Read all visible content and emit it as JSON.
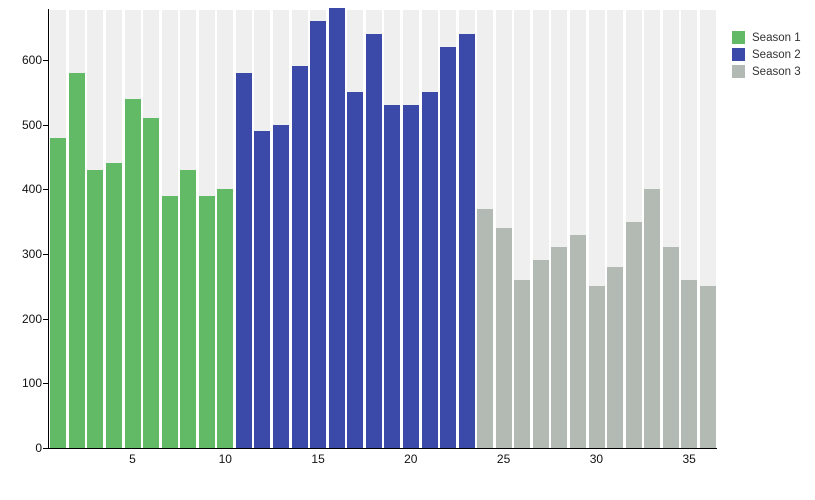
{
  "chart_data": {
    "type": "bar",
    "title": "",
    "xlabel": "",
    "ylabel": "",
    "n_slots": 36,
    "ylim": [
      0,
      677
    ],
    "y_ticks": [
      0,
      100,
      200,
      300,
      400,
      500,
      600
    ],
    "x_tick_labels": [
      5,
      10,
      15,
      20,
      25,
      30,
      35
    ],
    "grid": "off",
    "background_bands": true,
    "legend_position": "top-right-outside",
    "series": [
      {
        "name": "Season 1",
        "color": "#62b966",
        "x_start": 1,
        "values": [
          480,
          580,
          430,
          440,
          540,
          510,
          390,
          430,
          390,
          400
        ]
      },
      {
        "name": "Season 2",
        "color": "#3b4aa9",
        "x_start": 11,
        "values": [
          580,
          490,
          500,
          590,
          660,
          680,
          550,
          640,
          530,
          530,
          550,
          620,
          640
        ]
      },
      {
        "name": "Season 3",
        "color": "#b3bab3",
        "x_start": 24,
        "values": [
          370,
          340,
          260,
          290,
          310,
          330,
          250,
          280,
          350,
          400,
          310,
          260,
          250
        ]
      }
    ]
  },
  "colors": {
    "page_background": "#ffffff",
    "band": "#efefef",
    "axis": "#000000",
    "tick_text": "#111111",
    "legend_text": "#333333"
  }
}
